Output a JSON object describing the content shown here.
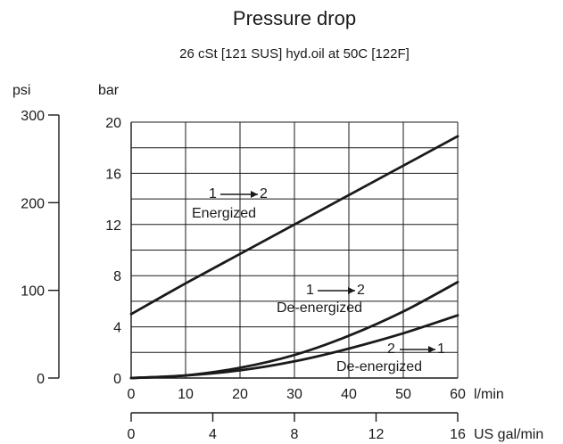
{
  "chart_data": {
    "type": "line",
    "title": "Pressure drop",
    "subtitle": "26 cSt [121 SUS] hyd.oil at 50C [122F]",
    "grid": true,
    "x_axis": {
      "label": "l/min",
      "range": [
        0,
        60
      ],
      "ticks": [
        0,
        10,
        20,
        30,
        40,
        50,
        60
      ]
    },
    "x_axis_secondary": {
      "label": "US gal/min",
      "range": [
        0,
        16
      ],
      "ticks": [
        0,
        4,
        8,
        12,
        16
      ]
    },
    "y_axis": {
      "label": "bar",
      "range": [
        0,
        20
      ],
      "ticks": [
        0,
        4,
        8,
        12,
        16,
        20
      ]
    },
    "y_axis_secondary": {
      "label": "psi",
      "range": [
        0,
        300
      ],
      "ticks": [
        0,
        100,
        200,
        300
      ]
    },
    "series": [
      {
        "name": "1 → 2 Energized",
        "x": [
          0,
          10,
          20,
          30,
          40,
          50,
          60
        ],
        "y": [
          5.0,
          7.4,
          9.7,
          12.0,
          14.3,
          16.6,
          18.9
        ]
      },
      {
        "name": "1 → 2 De-energized",
        "x": [
          0,
          10,
          20,
          30,
          40,
          50,
          60
        ],
        "y": [
          0,
          0.2,
          0.8,
          1.8,
          3.3,
          5.2,
          7.5
        ]
      },
      {
        "name": "2 → 1 De-energized",
        "x": [
          0,
          10,
          20,
          30,
          40,
          50,
          60
        ],
        "y": [
          0,
          0.2,
          0.6,
          1.3,
          2.3,
          3.5,
          4.9
        ]
      }
    ],
    "annotations": [
      {
        "top": "1",
        "bottom": "Energized",
        "end": "2"
      },
      {
        "top": "1",
        "bottom": "De-energized",
        "end": "2"
      },
      {
        "top": "2",
        "bottom": "De-energized",
        "end": "1"
      }
    ]
  }
}
